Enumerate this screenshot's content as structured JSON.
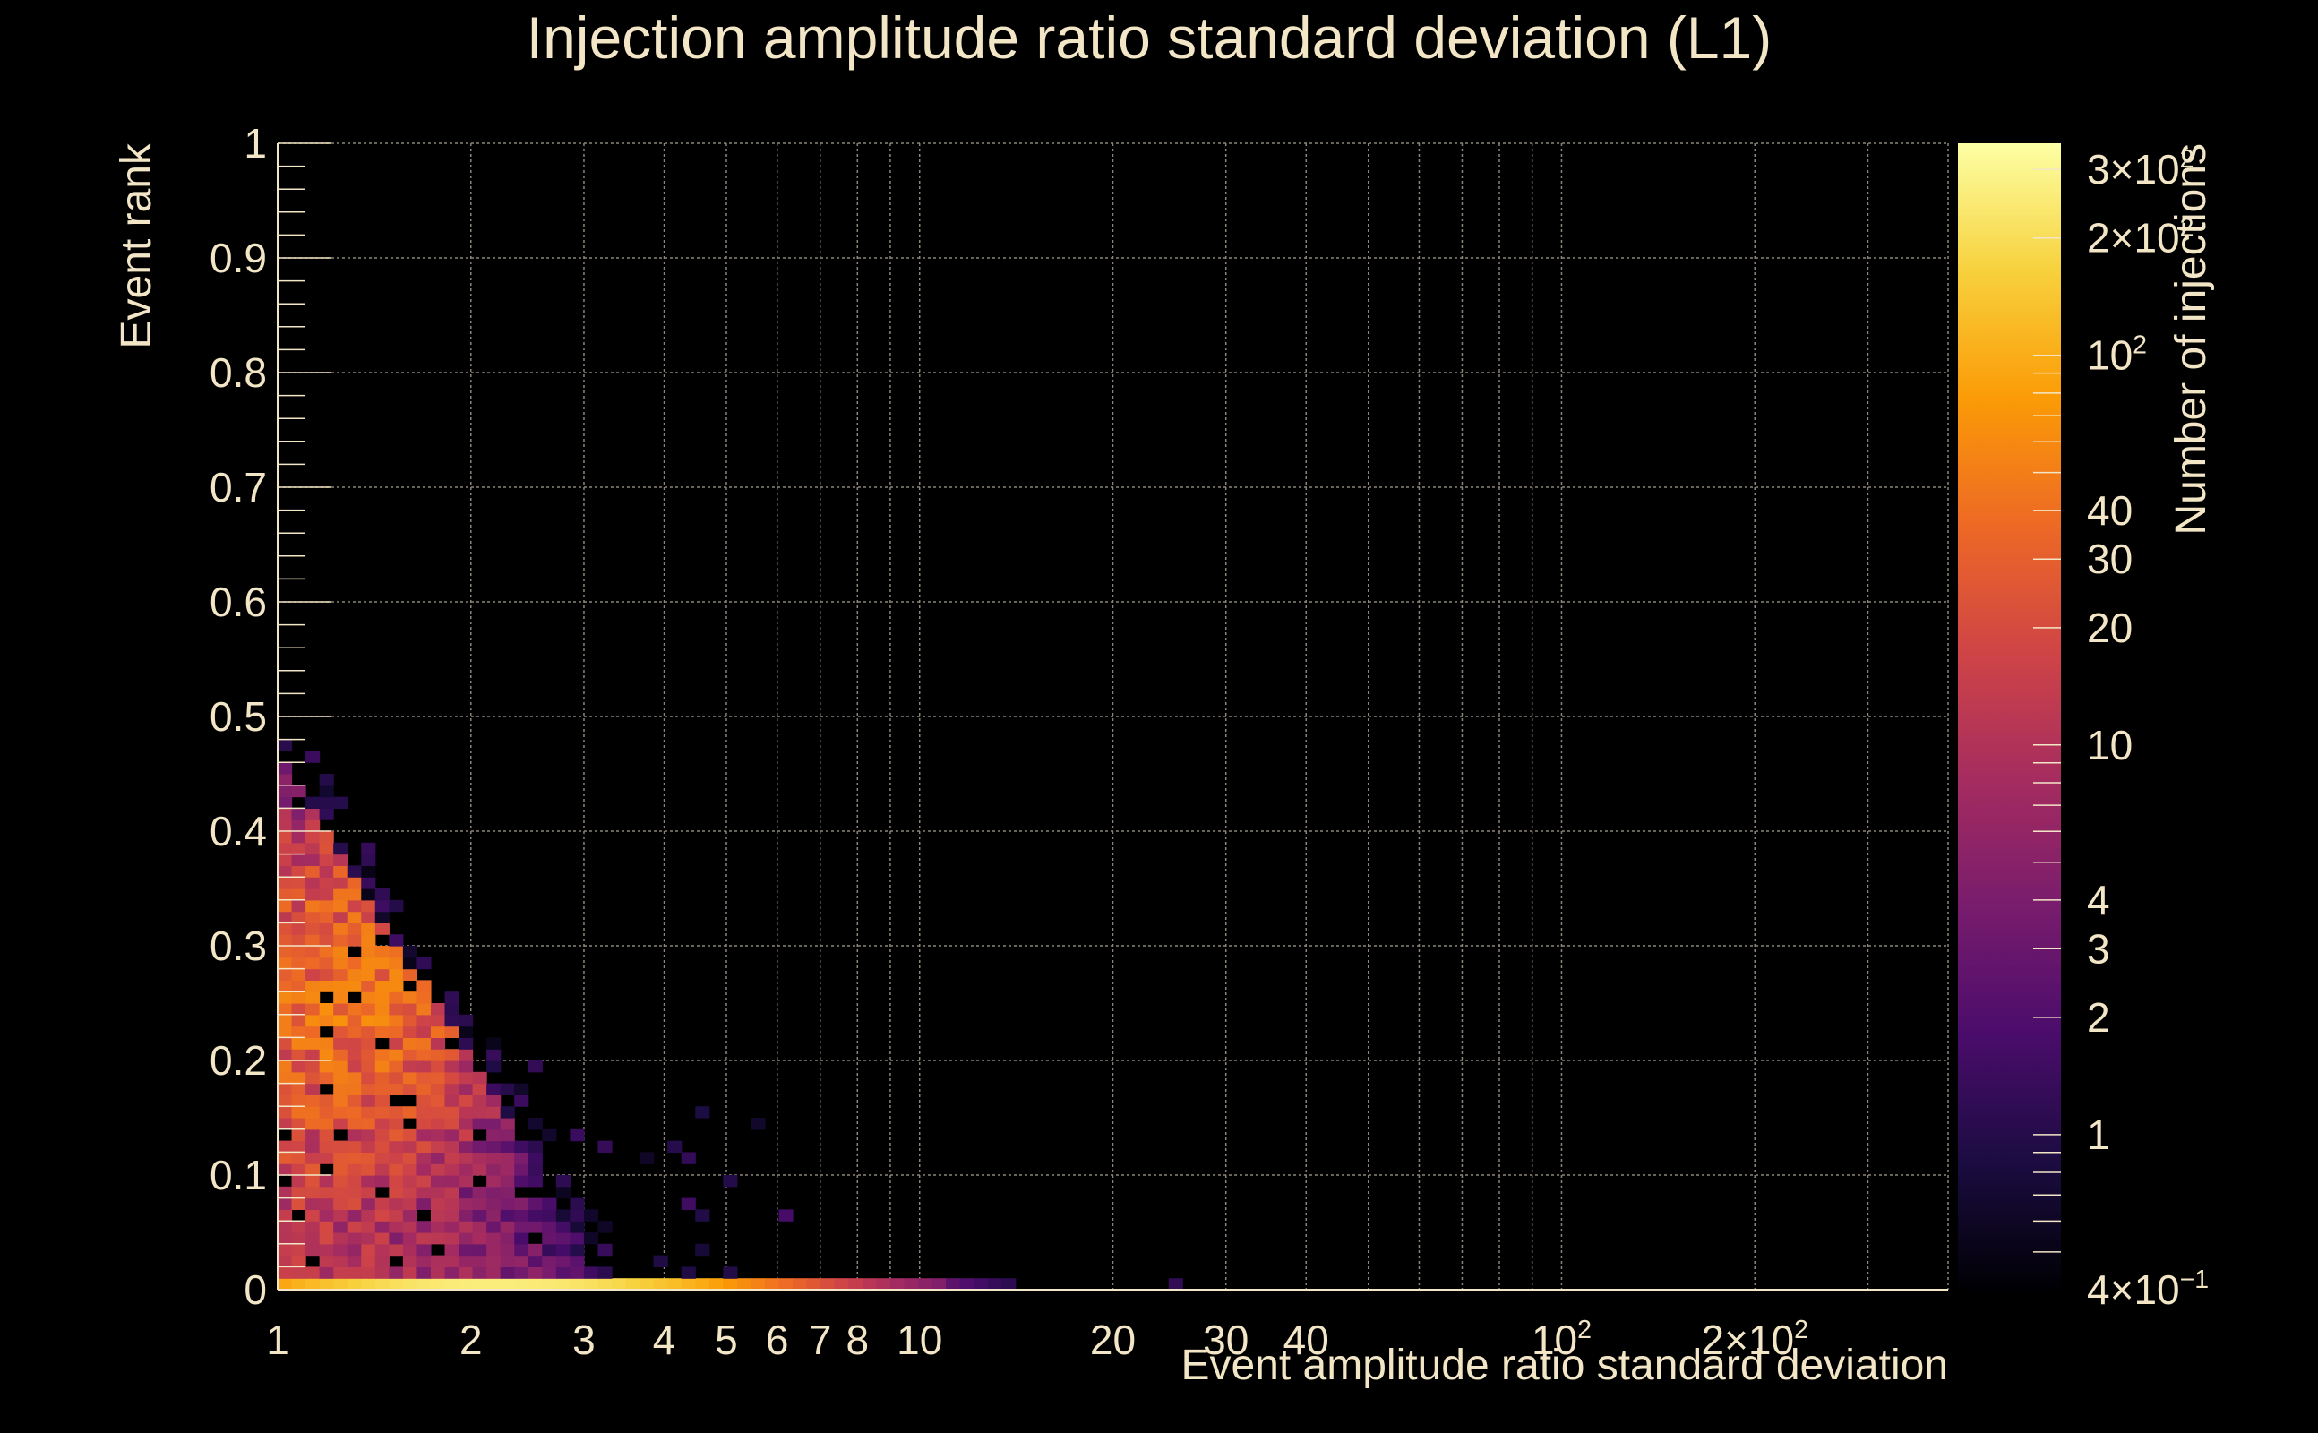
{
  "chart_data": {
    "type": "heatmap",
    "title": "Injection amplitude ratio standard deviation (L1)",
    "xlabel": "Event amplitude ratio standard deviation",
    "ylabel": "Event rank",
    "zlabel": "Number of injections",
    "x_scale": "log",
    "x_range": [
      1,
      400
    ],
    "y_range": [
      0,
      1
    ],
    "z_scale": "log",
    "z_range": [
      0.4,
      350
    ],
    "grid": true,
    "x_ticks": [
      {
        "value": 1,
        "label": "1"
      },
      {
        "value": 2,
        "label": "2"
      },
      {
        "value": 3,
        "label": "3"
      },
      {
        "value": 4,
        "label": "4"
      },
      {
        "value": 5,
        "label": "5"
      },
      {
        "value": 6,
        "label": "6"
      },
      {
        "value": 7,
        "label": "7"
      },
      {
        "value": 8,
        "label": "8"
      },
      {
        "value": 10,
        "label": "10"
      },
      {
        "value": 20,
        "label": "20"
      },
      {
        "value": 30,
        "label": "30"
      },
      {
        "value": 40,
        "label": "40"
      },
      {
        "value": 100,
        "label": "10",
        "exp": "2"
      },
      {
        "value": 200,
        "label": "2×10",
        "exp": "2"
      }
    ],
    "y_ticks": [
      {
        "value": 0,
        "label": "0"
      },
      {
        "value": 0.1,
        "label": "0.1"
      },
      {
        "value": 0.2,
        "label": "0.2"
      },
      {
        "value": 0.3,
        "label": "0.3"
      },
      {
        "value": 0.4,
        "label": "0.4"
      },
      {
        "value": 0.5,
        "label": "0.5"
      },
      {
        "value": 0.6,
        "label": "0.6"
      },
      {
        "value": 0.7,
        "label": "0.7"
      },
      {
        "value": 0.8,
        "label": "0.8"
      },
      {
        "value": 0.9,
        "label": "0.9"
      },
      {
        "value": 1,
        "label": "1"
      }
    ],
    "z_ticks": [
      {
        "value": 300,
        "label": "3×10",
        "exp": "2"
      },
      {
        "value": 200,
        "label": "2×10",
        "exp": "2"
      },
      {
        "value": 100,
        "label": "10",
        "exp": "2"
      },
      {
        "value": 40,
        "label": "40"
      },
      {
        "value": 30,
        "label": "30"
      },
      {
        "value": 20,
        "label": "20"
      },
      {
        "value": 10,
        "label": "10"
      },
      {
        "value": 4,
        "label": "4"
      },
      {
        "value": 3,
        "label": "3"
      },
      {
        "value": 2,
        "label": "2"
      },
      {
        "value": 1,
        "label": "1"
      },
      {
        "value": 0.4,
        "label": "4×10",
        "exp": "−1"
      }
    ],
    "colormap": [
      "#000004",
      "#1b0c41",
      "#4a0c6b",
      "#781c6d",
      "#a52c60",
      "#cf4446",
      "#ed6925",
      "#fb9b06",
      "#f7d13d",
      "#fcffa4"
    ],
    "density_peak": {
      "x": 1.25,
      "y": 0.28
    },
    "bottom_row_peak": {
      "x": 2.2,
      "y": 0.005
    },
    "description_of_cells": "log-x binned counts; dense region x in [1,3], y in [0,0.45]; bottom row y<0.01 bright up to x≈10"
  }
}
